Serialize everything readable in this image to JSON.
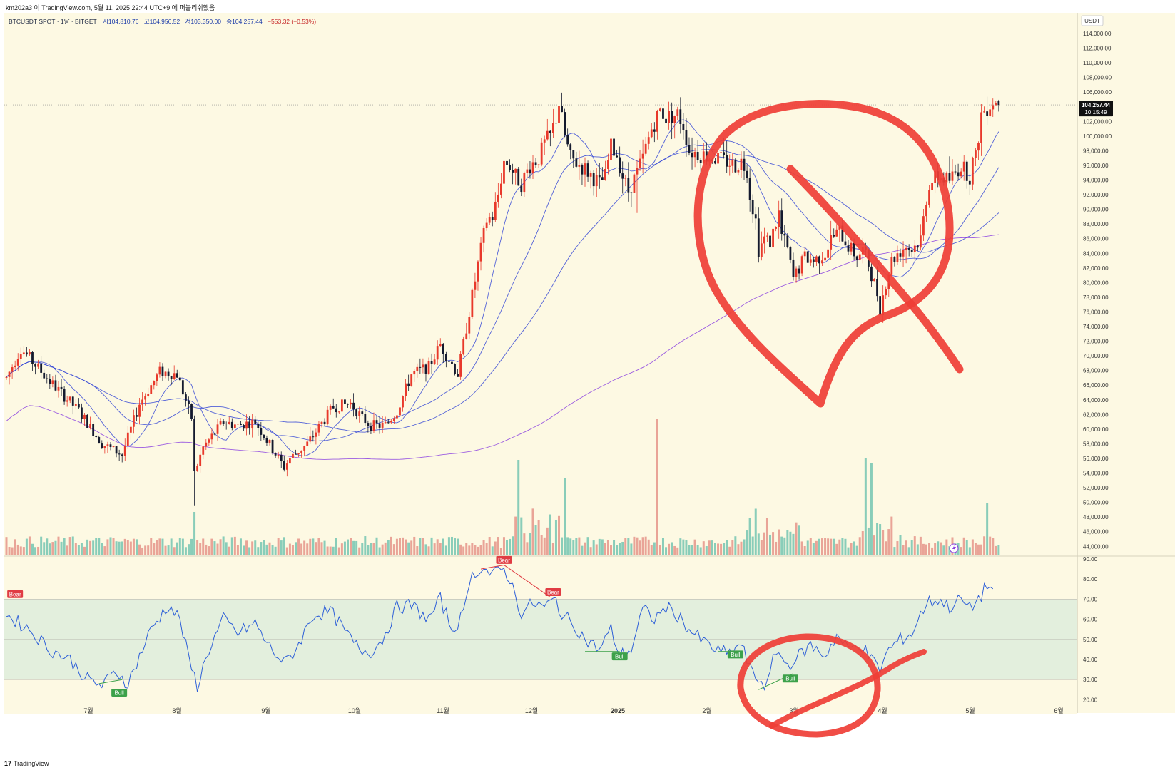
{
  "caption": "km202a3 이 TradingView.com, 5월 11, 2025 22:44 UTC+9 에 퍼블리쉬했음",
  "legend": {
    "symbol": "BTCUSDT SPOT · 1날 · BITGET",
    "open": "시104,810.76",
    "high": "고104,956.52",
    "low": "저103,350.00",
    "close": "종104,257.44",
    "change": "−553.32 (−0.53%)"
  },
  "currency_label": "USDT",
  "last_price": {
    "price": "104,257.44",
    "countdown": "10:15:49"
  },
  "branding": "TradingView",
  "colors": {
    "background": "#fdf9e3",
    "up": "#e8392b",
    "down": "#141a2e",
    "vol_up": "#e9a497",
    "vol_down": "#89cdb9",
    "ma_blue": "#3447d6",
    "ma_purple": "#8a3fe0",
    "rsi_line": "#2d5fd8",
    "rsi_band": "#e3efdd",
    "bull": "#3ca14a",
    "bear": "#e03c43",
    "annotation": "#ef3e36"
  },
  "chart_data": [
    {
      "type": "candlestick",
      "title": "BTCUSDT SPOT · 1날 · BITGET",
      "ylim": [
        43000,
        116000
      ],
      "yticks": [
        "114,000.00",
        "112,000.00",
        "110,000.00",
        "108,000.00",
        "106,000.00",
        "104,000.00",
        "102,000.00",
        "100,000.00",
        "98,000.00",
        "96,000.00",
        "94,000.00",
        "92,000.00",
        "90,000.00",
        "88,000.00",
        "86,000.00",
        "84,000.00",
        "82,000.00",
        "80,000.00",
        "78,000.00",
        "76,000.00",
        "74,000.00",
        "72,000.00",
        "70,000.00",
        "68,000.00",
        "66,000.00",
        "64,000.00",
        "62,000.00",
        "60,000.00",
        "58,000.00",
        "56,000.00",
        "54,000.00",
        "52,000.00",
        "50,000.00",
        "48,000.00",
        "46,000.00",
        "44,000.00"
      ],
      "xticks": [
        "7월",
        "8월",
        "9월",
        "10월",
        "11월",
        "12월",
        "2025",
        "2월",
        "3월",
        "4월",
        "5월",
        "6월"
      ],
      "approx_close_path": [
        [
          "6월 중순",
          66000
        ],
        [
          "7월 초",
          60000
        ],
        [
          "7월 중순",
          57000
        ],
        [
          "7월 말",
          68000
        ],
        [
          "8월 5일",
          54000
        ],
        [
          "8월 중순",
          60000
        ],
        [
          "9월 초",
          55000
        ],
        [
          "9월 말",
          65000
        ],
        [
          "10월 중순",
          62000
        ],
        [
          "10월 말",
          70000
        ],
        [
          "11월 중순",
          91000
        ],
        [
          "11월 말",
          97000
        ],
        [
          "12월 중순",
          106000
        ],
        [
          "12월 말",
          93000
        ],
        [
          "1월 중순",
          102000
        ],
        [
          "2월 초",
          100000
        ],
        [
          "2월 말",
          84000
        ],
        [
          "3월 중순",
          82000
        ],
        [
          "4월 초",
          77000
        ],
        [
          "4월 말",
          94000
        ],
        [
          "5월 11일",
          104257
        ]
      ],
      "moving_averages": 4,
      "volume": true
    },
    {
      "type": "line",
      "title": "RSI",
      "ylim": [
        20,
        90
      ],
      "yticks": [
        "90.00",
        "80.00",
        "70.00",
        "60.00",
        "50.00",
        "40.00",
        "30.00",
        "20.00"
      ],
      "band": [
        30,
        70
      ],
      "approx_values": [
        [
          "6월 중순",
          62
        ],
        [
          "7월 초",
          38
        ],
        [
          "7월 중순",
          28
        ],
        [
          "7월 말",
          66
        ],
        [
          "8월 5일",
          27
        ],
        [
          "8월 중순",
          60
        ],
        [
          "9월 초",
          38
        ],
        [
          "9월 말",
          65
        ],
        [
          "10월 중순",
          45
        ],
        [
          "10월 말",
          67
        ],
        [
          "11월 중순",
          85
        ],
        [
          "11월 말",
          84
        ],
        [
          "12월 중순",
          66
        ],
        [
          "12월 말",
          42
        ],
        [
          "1월 중순",
          68
        ],
        [
          "2월 초",
          55
        ],
        [
          "2월 말",
          42
        ],
        [
          "3월 초",
          27
        ],
        [
          "3월 중순",
          45
        ],
        [
          "4월 초",
          35
        ],
        [
          "4월 말",
          68
        ],
        [
          "5월 11일",
          76
        ]
      ],
      "signals": [
        {
          "label": "Bear",
          "kind": "bear",
          "at": "6월 중순"
        },
        {
          "label": "Bull",
          "kind": "bull",
          "at": "7월 중순"
        },
        {
          "label": "Bear",
          "kind": "bear",
          "at": "11월 말"
        },
        {
          "label": "Bear",
          "kind": "bear",
          "at": "12월 중순"
        },
        {
          "label": "Bull",
          "kind": "bull",
          "at": "12월 말"
        },
        {
          "label": "Bull",
          "kind": "bull",
          "at": "2월 말"
        },
        {
          "label": "Bull",
          "kind": "bull",
          "at": "3월 초"
        }
      ]
    }
  ]
}
